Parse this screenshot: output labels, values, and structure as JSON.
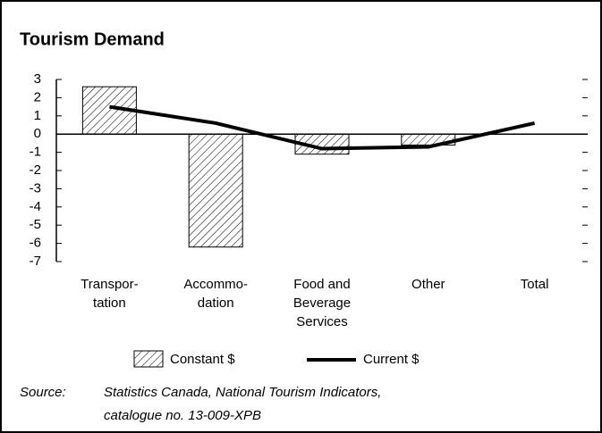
{
  "chart_data": {
    "type": "bar-line",
    "title": "Tourism Demand",
    "categories": [
      [
        "Transpor-",
        "tation"
      ],
      [
        "Accommo-",
        "dation"
      ],
      [
        "Food and",
        "Beverage",
        "Services"
      ],
      [
        "Other"
      ],
      [
        "Total"
      ]
    ],
    "series": [
      {
        "name": "Constant $",
        "type": "bar",
        "color": "#000000",
        "values": [
          2.6,
          -6.2,
          -1.1,
          -0.6,
          null
        ]
      },
      {
        "name": "Current $",
        "type": "line",
        "color": "#000000",
        "values": [
          1.5,
          0.6,
          -0.8,
          -0.7,
          0.6
        ]
      }
    ],
    "ylim": [
      -7,
      3
    ],
    "yticks": [
      3,
      2,
      1,
      0,
      -1,
      -2,
      -3,
      -4,
      -5,
      -6,
      -7
    ],
    "source": {
      "label": "Source:",
      "lines": [
        "Statistics Canada, National Tourism Indicators,",
        "catalogue no. 13-009-XPB"
      ]
    }
  }
}
